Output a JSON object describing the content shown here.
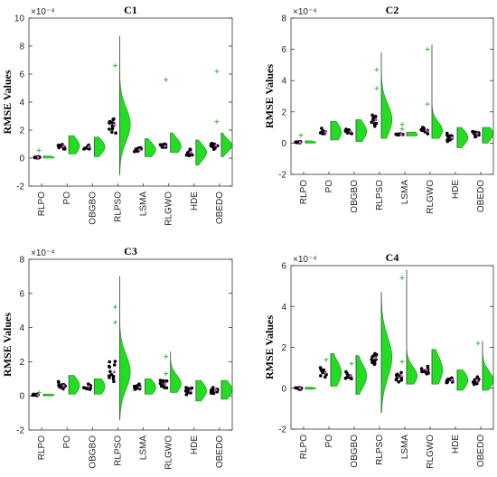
{
  "figure": {
    "background": "#ffffff",
    "violin_color": "#22dd22",
    "point_color": "#000000",
    "outlier_color": "#33aa33",
    "median_marker_color": "#cc44cc"
  },
  "chart_data": [
    {
      "type": "violin",
      "title": "C1",
      "ylabel": "RMSE Values",
      "exponent_label": "×10⁻⁴",
      "ylim": [
        -2,
        10
      ],
      "yticks": [
        "-2",
        "0",
        "2",
        "4",
        "6",
        "8",
        "10"
      ],
      "categories": [
        "RLPO",
        "PO",
        "OBGBO",
        "RLPSO",
        "LSMA",
        "RLGWO",
        "HDE",
        "OBEDO"
      ],
      "series": [
        {
          "category": "RLPO",
          "median": 0.05,
          "q1": 0.0,
          "q3": 0.1,
          "min": 0.0,
          "max": 0.15,
          "spread": 0.1,
          "outliers": [
            0.55
          ]
        },
        {
          "category": "PO",
          "median": 0.85,
          "q1": 0.6,
          "q3": 1.05,
          "min": 0.3,
          "max": 1.6,
          "spread": 0.6,
          "outliers": []
        },
        {
          "category": "OBGBO",
          "median": 0.8,
          "q1": 0.55,
          "q3": 1.0,
          "min": 0.1,
          "max": 1.5,
          "spread": 0.55,
          "outliers": []
        },
        {
          "category": "RLPSO",
          "median": 2.4,
          "q1": 1.8,
          "q3": 3.3,
          "min": -1.2,
          "max": 8.7,
          "spread": 1.2,
          "outliers": [
            6.6
          ]
        },
        {
          "category": "LSMA",
          "median": 0.6,
          "q1": 0.4,
          "q3": 0.8,
          "min": 0.1,
          "max": 1.4,
          "spread": 0.5,
          "outliers": []
        },
        {
          "category": "RLGWO",
          "median": 0.85,
          "q1": 0.65,
          "q3": 1.05,
          "min": 0.4,
          "max": 1.8,
          "spread": 0.55,
          "outliers": [
            5.6
          ]
        },
        {
          "category": "HDE",
          "median": 0.4,
          "q1": 0.15,
          "q3": 0.6,
          "min": -0.5,
          "max": 1.3,
          "spread": 0.55,
          "outliers": []
        },
        {
          "category": "OBEDO",
          "median": 0.9,
          "q1": 0.65,
          "q3": 1.15,
          "min": 0.1,
          "max": 1.8,
          "spread": 0.45,
          "outliers": [
            6.2,
            2.6
          ]
        }
      ]
    },
    {
      "type": "violin",
      "title": "C2",
      "ylabel": "RMSE Values",
      "exponent_label": "×10⁻⁴",
      "ylim": [
        -2,
        8
      ],
      "yticks": [
        "-2",
        "0",
        "2",
        "4",
        "6",
        "8"
      ],
      "categories": [
        "RLPO",
        "PO",
        "OBGBO",
        "RLPSO",
        "LSMA",
        "RLGWO",
        "HDE",
        "OBEDO"
      ],
      "series": [
        {
          "category": "RLPO",
          "median": 0.05,
          "q1": 0.0,
          "q3": 0.1,
          "min": 0.0,
          "max": 0.15,
          "spread": 0.08,
          "outliers": [
            0.5
          ]
        },
        {
          "category": "PO",
          "median": 0.7,
          "q1": 0.5,
          "q3": 0.95,
          "min": 0.2,
          "max": 1.4,
          "spread": 0.6,
          "outliers": []
        },
        {
          "category": "OBGBO",
          "median": 0.75,
          "q1": 0.5,
          "q3": 1.0,
          "min": 0.1,
          "max": 1.5,
          "spread": 0.6,
          "outliers": []
        },
        {
          "category": "RLPSO",
          "median": 1.5,
          "q1": 1.0,
          "q3": 2.0,
          "min": 0.3,
          "max": 5.8,
          "spread": 1.0,
          "outliers": [
            4.7,
            3.5
          ]
        },
        {
          "category": "LSMA",
          "median": 0.55,
          "q1": 0.5,
          "q3": 0.6,
          "min": 0.45,
          "max": 0.7,
          "spread": 0.25,
          "outliers": [
            1.2,
            0.9
          ]
        },
        {
          "category": "RLGWO",
          "median": 0.8,
          "q1": 0.6,
          "q3": 1.0,
          "min": 0.3,
          "max": 6.3,
          "spread": 0.55,
          "outliers": [
            6.0,
            2.5
          ]
        },
        {
          "category": "HDE",
          "median": 0.35,
          "q1": 0.15,
          "q3": 0.55,
          "min": -0.3,
          "max": 1.0,
          "spread": 0.5,
          "outliers": []
        },
        {
          "category": "OBEDO",
          "median": 0.6,
          "q1": 0.4,
          "q3": 0.8,
          "min": 0.0,
          "max": 1.0,
          "spread": 0.5,
          "outliers": []
        }
      ]
    },
    {
      "type": "violin",
      "title": "C3",
      "ylabel": "RMSE Values",
      "exponent_label": "×10⁻⁴",
      "ylim": [
        -2,
        8
      ],
      "yticks": [
        "-2",
        "0",
        "2",
        "4",
        "6",
        "8"
      ],
      "categories": [
        "RLPO",
        "PO",
        "OBGBO",
        "RLPSO",
        "LSMA",
        "RLGWO",
        "HDE",
        "OBEDO"
      ],
      "series": [
        {
          "category": "RLPO",
          "median": 0.05,
          "q1": 0.0,
          "q3": 0.1,
          "min": 0.0,
          "max": 0.1,
          "spread": 0.08,
          "outliers": [
            0.2
          ]
        },
        {
          "category": "PO",
          "median": 0.6,
          "q1": 0.4,
          "q3": 0.85,
          "min": 0.1,
          "max": 1.2,
          "spread": 0.5,
          "outliers": []
        },
        {
          "category": "OBGBO",
          "median": 0.55,
          "q1": 0.35,
          "q3": 0.75,
          "min": 0.1,
          "max": 1.0,
          "spread": 0.5,
          "outliers": []
        },
        {
          "category": "RLPSO",
          "median": 1.4,
          "q1": 0.8,
          "q3": 2.1,
          "min": -1.4,
          "max": 7.0,
          "spread": 1.0,
          "outliers": [
            5.2,
            4.3
          ]
        },
        {
          "category": "LSMA",
          "median": 0.5,
          "q1": 0.35,
          "q3": 0.7,
          "min": 0.1,
          "max": 1.0,
          "spread": 0.45,
          "outliers": []
        },
        {
          "category": "RLGWO",
          "median": 0.7,
          "q1": 0.5,
          "q3": 0.95,
          "min": 0.2,
          "max": 2.6,
          "spread": 0.5,
          "outliers": [
            2.3,
            1.3
          ]
        },
        {
          "category": "HDE",
          "median": 0.3,
          "q1": 0.15,
          "q3": 0.5,
          "min": -0.3,
          "max": 0.9,
          "spread": 0.5,
          "outliers": []
        },
        {
          "category": "OBEDO",
          "median": 0.35,
          "q1": 0.15,
          "q3": 0.55,
          "min": -0.2,
          "max": 0.9,
          "spread": 0.5,
          "outliers": []
        }
      ]
    },
    {
      "type": "violin",
      "title": "C4",
      "ylabel": "RMSE Values",
      "exponent_label": "×10⁻⁴",
      "ylim": [
        -2,
        6
      ],
      "yticks": [
        "-2",
        "0",
        "2",
        "4",
        "6"
      ],
      "categories": [
        "RLPO",
        "PO",
        "OBGBO",
        "RLPSO",
        "LSMA",
        "RLGWO",
        "HDE",
        "OBEDO"
      ],
      "series": [
        {
          "category": "RLPO",
          "median": 0.0,
          "q1": -0.05,
          "q3": 0.05,
          "min": -0.05,
          "max": 0.05,
          "spread": 0.05,
          "outliers": []
        },
        {
          "category": "PO",
          "median": 0.75,
          "q1": 0.5,
          "q3": 1.0,
          "min": 0.1,
          "max": 1.7,
          "spread": 0.6,
          "outliers": [
            1.4
          ]
        },
        {
          "category": "OBGBO",
          "median": 0.6,
          "q1": 0.35,
          "q3": 0.85,
          "min": -0.3,
          "max": 1.6,
          "spread": 0.6,
          "outliers": [
            1.2
          ]
        },
        {
          "category": "RLPSO",
          "median": 1.5,
          "q1": 1.0,
          "q3": 2.0,
          "min": -1.2,
          "max": 4.7,
          "spread": 1.0,
          "outliers": []
        },
        {
          "category": "LSMA",
          "median": 0.6,
          "q1": 0.4,
          "q3": 0.8,
          "min": 0.2,
          "max": 5.8,
          "spread": 0.45,
          "outliers": [
            5.4,
            1.3
          ]
        },
        {
          "category": "RLGWO",
          "median": 0.9,
          "q1": 0.6,
          "q3": 1.2,
          "min": 0.2,
          "max": 1.9,
          "spread": 0.7,
          "outliers": []
        },
        {
          "category": "HDE",
          "median": 0.4,
          "q1": 0.2,
          "q3": 0.55,
          "min": -0.1,
          "max": 0.9,
          "spread": 0.45,
          "outliers": []
        },
        {
          "category": "OBEDO",
          "median": 0.4,
          "q1": 0.2,
          "q3": 0.55,
          "min": -0.1,
          "max": 2.3,
          "spread": 0.45,
          "outliers": [
            2.2
          ]
        }
      ]
    }
  ]
}
